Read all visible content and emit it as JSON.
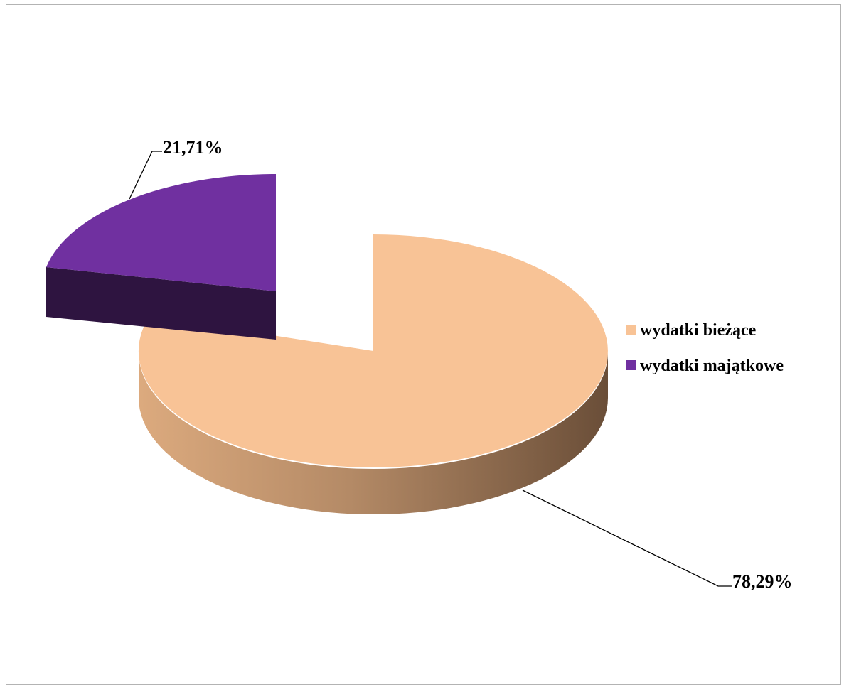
{
  "chart_data": {
    "type": "pie",
    "style": "3d-exploded",
    "categories": [
      "wydatki bieżące",
      "wydatki majątkowe"
    ],
    "values": [
      78.29,
      21.71
    ],
    "data_labels": [
      "78,29%",
      "21,71%"
    ],
    "colors": {
      "wydatki bieżące": "#f8c396",
      "wydatki majątkowe": "#7030a0"
    },
    "legend": {
      "position": "right",
      "items": [
        {
          "label": "wydatki bieżące",
          "color": "#f8c396"
        },
        {
          "label": "wydatki majątkowe",
          "color": "#7030a0"
        }
      ]
    },
    "title": ""
  }
}
